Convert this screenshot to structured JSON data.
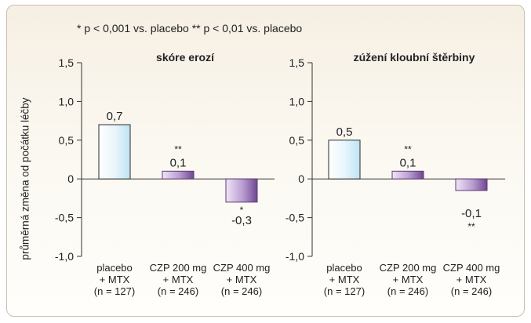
{
  "footnote": "* p < 0,001 vs. placebo   ** p < 0,01 vs. placebo",
  "ylabel": "průměrná změna od počátku léčby",
  "chart_data": [
    {
      "type": "bar",
      "title": "skóre erozí",
      "ylim": [
        -1.0,
        1.5
      ],
      "yticks": [
        "1,5",
        "1,0",
        "0,5",
        "0",
        "-0,5",
        "-1,0"
      ],
      "categories": [
        [
          "placebo",
          "+ MTX",
          "(n = 127)"
        ],
        [
          "CZP 200 mg",
          "+ MTX",
          "(n = 246)"
        ],
        [
          "CZP 400 mg",
          "+ MTX",
          "(n = 246)"
        ]
      ],
      "values": [
        0.7,
        0.1,
        -0.3
      ],
      "labels": [
        "0,7",
        "0,1",
        "-0,3"
      ],
      "significance": [
        "",
        "**",
        "*"
      ]
    },
    {
      "type": "bar",
      "title": "zúžení kloubní štěrbiny",
      "ylim": [
        -1.0,
        1.5
      ],
      "yticks": [
        "1,5",
        "1,0",
        "0,5",
        "0",
        "-0,5",
        "-1,0"
      ],
      "categories": [
        [
          "placebo",
          "+ MTX",
          "(n = 127)"
        ],
        [
          "CZP 200 mg",
          "+ MTX",
          "(n = 246)"
        ],
        [
          "CZP 400 mg",
          "+ MTX",
          "(n = 246)"
        ]
      ],
      "values": [
        0.5,
        0.1,
        -0.15
      ],
      "labels": [
        "0,5",
        "0,1",
        "-0,1"
      ],
      "significance": [
        "",
        "**",
        "**"
      ]
    }
  ],
  "colors": {
    "placebo": "#e4f3fb",
    "placebo_edge": "#2a2a2a",
    "czp_light": "#d7c6e6",
    "czp_dark": "#7a4f96"
  }
}
